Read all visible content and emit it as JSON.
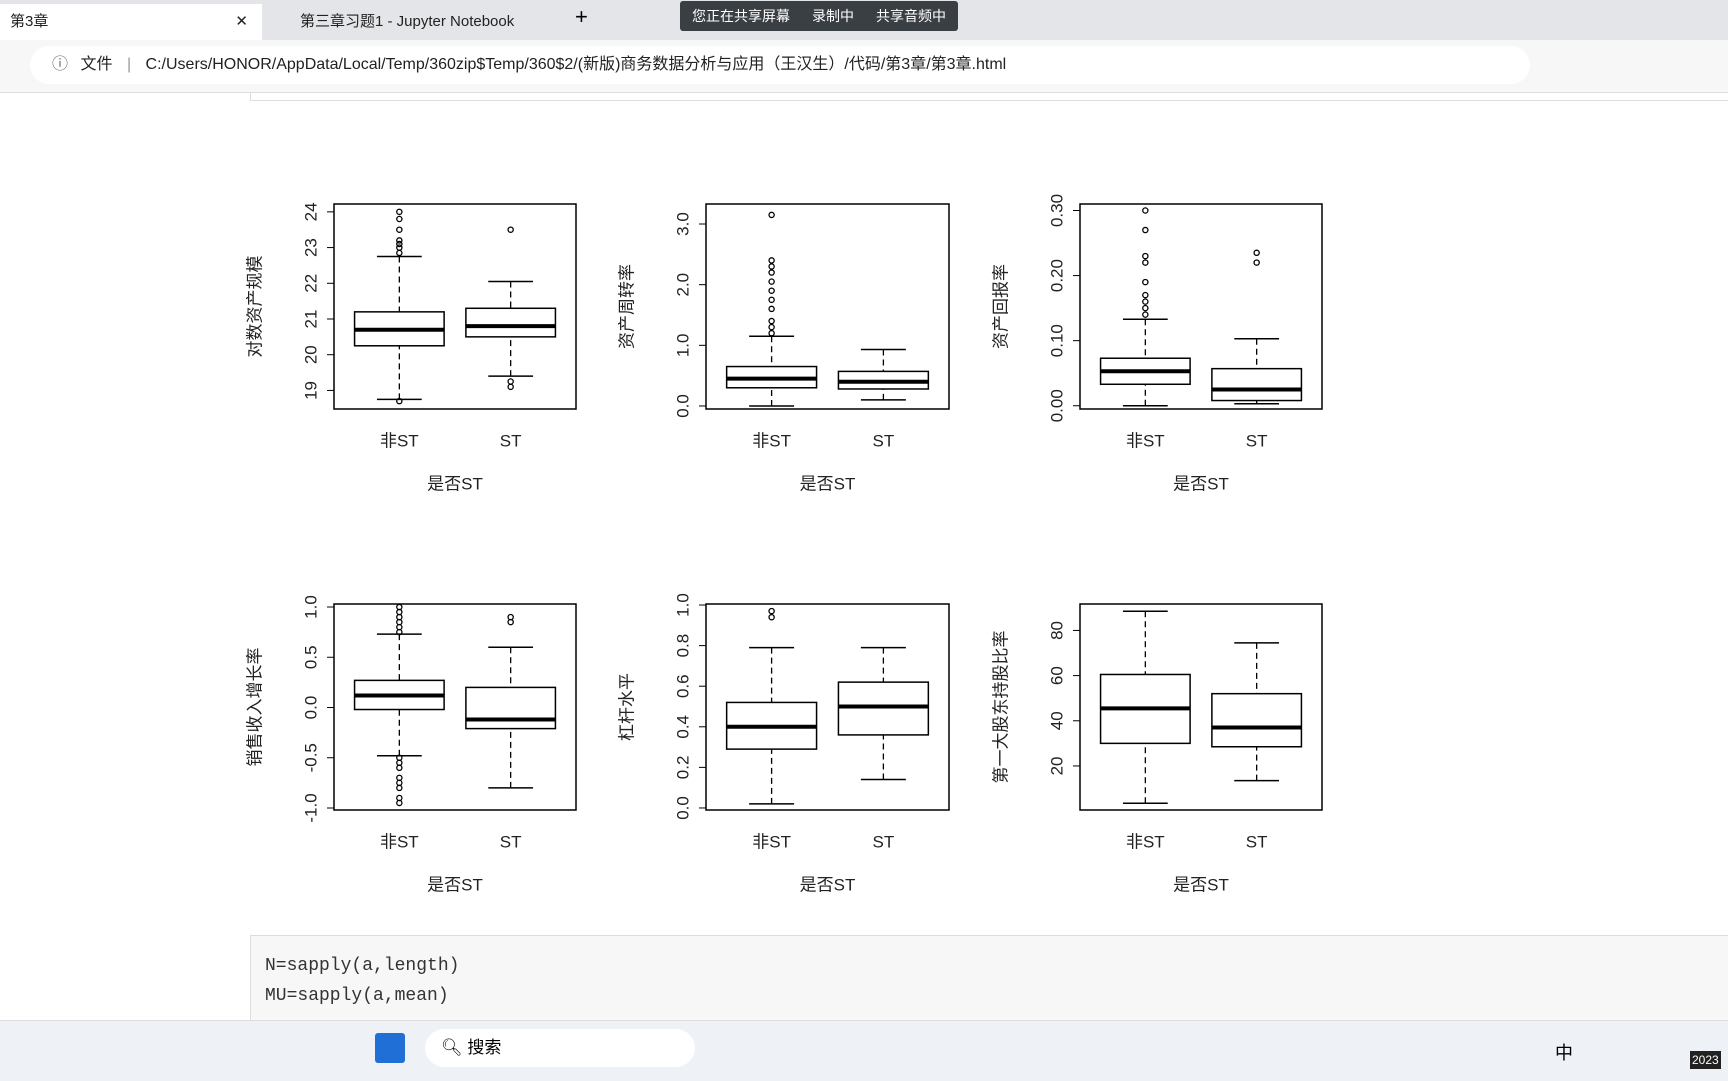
{
  "tabs": [
    "第3章",
    "第三章习题1 - Jupyter Notebook"
  ],
  "share_bar": [
    "您正在共享屏幕",
    "录制中",
    "共享音频中"
  ],
  "address_bar": {
    "label": "文件",
    "url": "C:/Users/HONOR/AppData/Local/Temp/360zip$Temp/360$2/(新版)商务数据分析与应用（王汉生）/代码/第3章/第3章.html"
  },
  "code_cell": {
    "lines": [
      "N=sapply(a,length)",
      "MU=sapply(a,mean)"
    ]
  },
  "taskbar": {
    "search": "搜索",
    "ime": "中",
    "clock": "2023"
  },
  "chart_data": [
    {
      "type": "boxplot",
      "y_label": "对数资产规模",
      "x_label": "是否ST",
      "categories": [
        "非ST",
        "ST"
      ],
      "ylim": [
        18.48,
        24.22
      ],
      "yticks": [
        19,
        20,
        21,
        22,
        23,
        24
      ],
      "boxes": [
        {
          "whisker_low": 18.75,
          "q1": 20.25,
          "median": 20.7,
          "q3": 21.2,
          "whisker_high": 22.75,
          "outliers": [
            18.7,
            22.85,
            23.0,
            23.1,
            23.2,
            23.5,
            23.8,
            24.0
          ]
        },
        {
          "whisker_low": 19.4,
          "q1": 20.5,
          "median": 20.8,
          "q3": 21.3,
          "whisker_high": 22.05,
          "outliers": [
            19.1,
            19.25,
            23.5
          ]
        }
      ]
    },
    {
      "type": "boxplot",
      "y_label": "资产周转率",
      "x_label": "是否ST",
      "categories": [
        "非ST",
        "ST"
      ],
      "ylim": [
        -0.05,
        3.33
      ],
      "yticks": [
        {
          "value": 0,
          "label": "0.0"
        },
        {
          "value": 1,
          "label": "1.0"
        },
        {
          "value": 2,
          "label": "2.0"
        },
        {
          "value": 3,
          "label": "3.0"
        }
      ],
      "boxes": [
        {
          "whisker_low": 0.0,
          "q1": 0.3,
          "median": 0.45,
          "q3": 0.65,
          "whisker_high": 1.15,
          "outliers": [
            1.2,
            1.3,
            1.4,
            1.6,
            1.75,
            1.9,
            2.05,
            2.2,
            2.3,
            2.4,
            3.15
          ]
        },
        {
          "whisker_low": 0.1,
          "q1": 0.28,
          "median": 0.4,
          "q3": 0.57,
          "whisker_high": 0.93,
          "outliers": []
        }
      ]
    },
    {
      "type": "boxplot",
      "y_label": "资产回报率",
      "x_label": "是否ST",
      "categories": [
        "非ST",
        "ST"
      ],
      "ylim": [
        -0.005,
        0.31
      ],
      "yticks": [
        {
          "value": 0,
          "label": "0.00"
        },
        {
          "value": 0.1,
          "label": "0.10"
        },
        {
          "value": 0.2,
          "label": "0.20"
        },
        {
          "value": 0.3,
          "label": "0.30"
        }
      ],
      "boxes": [
        {
          "whisker_low": 0.0,
          "q1": 0.033,
          "median": 0.053,
          "q3": 0.073,
          "whisker_high": 0.133,
          "outliers": [
            0.14,
            0.15,
            0.16,
            0.17,
            0.19,
            0.22,
            0.23,
            0.27,
            0.3
          ]
        },
        {
          "whisker_low": 0.003,
          "q1": 0.008,
          "median": 0.025,
          "q3": 0.057,
          "whisker_high": 0.103,
          "outliers": [
            0.22,
            0.235
          ]
        }
      ]
    },
    {
      "type": "boxplot",
      "y_label": "销售收入增长率",
      "x_label": "是否ST",
      "categories": [
        "非ST",
        "ST"
      ],
      "ylim": [
        -1.02,
        1.03
      ],
      "yticks": [
        {
          "value": -1,
          "label": "-1.0"
        },
        {
          "value": -0.5,
          "label": "-0.5"
        },
        {
          "value": 0,
          "label": "0.0"
        },
        {
          "value": 0.5,
          "label": "0.5"
        },
        {
          "value": 1,
          "label": "1.0"
        }
      ],
      "boxes": [
        {
          "whisker_low": -0.48,
          "q1": -0.02,
          "median": 0.12,
          "q3": 0.27,
          "whisker_high": 0.73,
          "outliers": [
            0.75,
            0.8,
            0.85,
            0.9,
            0.95,
            1.0,
            -0.5,
            -0.55,
            -0.6,
            -0.7,
            -0.75,
            -0.8,
            -0.9,
            -0.95
          ]
        },
        {
          "whisker_low": -0.8,
          "q1": -0.21,
          "median": -0.12,
          "q3": 0.2,
          "whisker_high": 0.6,
          "outliers": [
            0.85,
            0.9
          ]
        }
      ]
    },
    {
      "type": "boxplot",
      "y_label": "杠杆水平",
      "x_label": "是否ST",
      "categories": [
        "非ST",
        "ST"
      ],
      "ylim": [
        -0.01,
        1.005
      ],
      "yticks": [
        {
          "value": 0,
          "label": "0.0"
        },
        {
          "value": 0.2,
          "label": "0.2"
        },
        {
          "value": 0.4,
          "label": "0.4"
        },
        {
          "value": 0.6,
          "label": "0.6"
        },
        {
          "value": 0.8,
          "label": "0.8"
        },
        {
          "value": 1,
          "label": "1.0"
        }
      ],
      "boxes": [
        {
          "whisker_low": 0.02,
          "q1": 0.29,
          "median": 0.4,
          "q3": 0.52,
          "whisker_high": 0.79,
          "outliers": [
            0.94,
            0.97
          ]
        },
        {
          "whisker_low": 0.14,
          "q1": 0.36,
          "median": 0.5,
          "q3": 0.62,
          "whisker_high": 0.79,
          "outliers": []
        }
      ]
    },
    {
      "type": "boxplot",
      "y_label": "第一大股东持股比率",
      "x_label": "是否ST",
      "categories": [
        "非ST",
        "ST"
      ],
      "ylim": [
        0.5,
        91.7
      ],
      "yticks": [
        20,
        40,
        60,
        80
      ],
      "boxes": [
        {
          "whisker_low": 3.5,
          "q1": 30,
          "median": 45.5,
          "q3": 60.5,
          "whisker_high": 88.5,
          "outliers": []
        },
        {
          "whisker_low": 13.5,
          "q1": 28.5,
          "median": 37,
          "q3": 52,
          "whisker_high": 74.5,
          "outliers": []
        }
      ]
    }
  ]
}
